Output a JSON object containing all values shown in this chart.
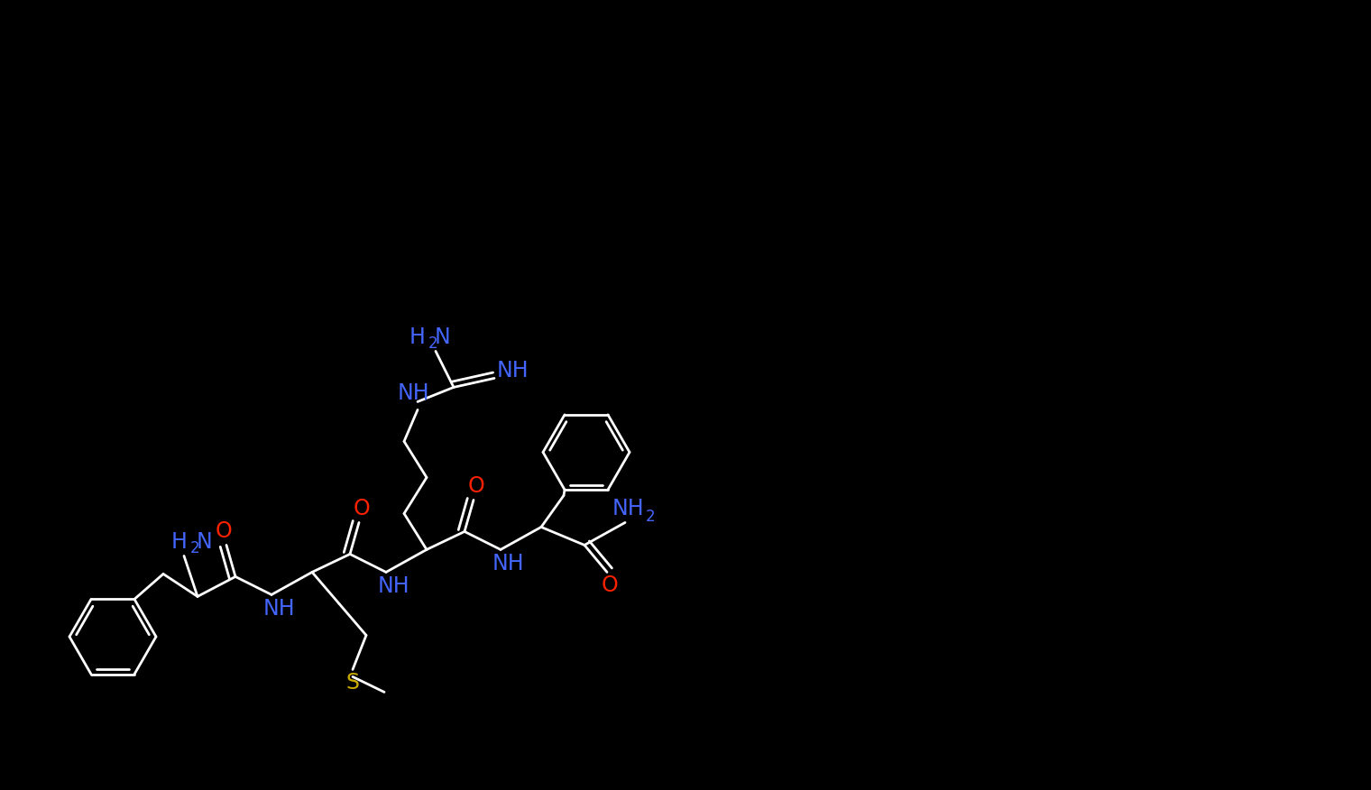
{
  "bg": "#000000",
  "bond_color": "#ffffff",
  "N_color": "#4466ff",
  "O_color": "#ff2200",
  "S_color": "#ccaa00",
  "lw": 2.0,
  "lw_ring": 2.0,
  "fs": 17,
  "fs_sub": 12,
  "xlim": [
    0,
    152
  ],
  "ylim": [
    0,
    87.6
  ],
  "figw": 15.2,
  "figh": 8.76,
  "dpi": 100
}
